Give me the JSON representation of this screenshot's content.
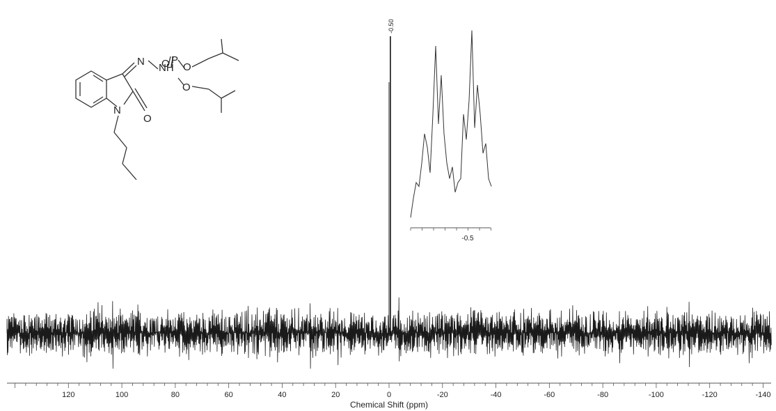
{
  "chart_data": {
    "type": "line",
    "xlabel": "Chemical Shift (ppm)",
    "xlim": [
      143,
      -143
    ],
    "x_reversed": true,
    "ylabel": "",
    "grid": false,
    "x_ticks": [
      120,
      100,
      80,
      60,
      40,
      20,
      0,
      -20,
      -40,
      -60,
      -80,
      -100,
      -120,
      -140
    ],
    "x_tick_labels": [
      "120",
      "100",
      "80",
      "60",
      "40",
      "20",
      "0",
      "-20",
      "-40",
      "-60",
      "-80",
      "-100",
      "-120",
      "-140"
    ],
    "peaks": [
      {
        "shift": -0.5,
        "label": "-0.50",
        "relative_height": 1.0
      }
    ],
    "baseline": "noise",
    "inset": {
      "type": "line",
      "description_of_content": "expanded multiplet around the main peak",
      "x_ticks": [
        -0.5
      ],
      "x_tick_labels": [
        "-0.5"
      ],
      "profile": [
        0.02,
        0.12,
        0.2,
        0.18,
        0.3,
        0.45,
        0.38,
        0.25,
        0.55,
        0.9,
        0.5,
        0.75,
        0.45,
        0.3,
        0.22,
        0.28,
        0.15,
        0.2,
        0.22,
        0.55,
        0.42,
        0.62,
        0.98,
        0.48,
        0.7,
        0.55,
        0.35,
        0.4,
        0.22,
        0.18
      ]
    }
  },
  "structure": {
    "atom_labels": {
      "n_imine": "N",
      "n_bridge": "N",
      "nh": "NH",
      "p": "P",
      "o_double": "O",
      "o_ester1": "O",
      "o_ester2": "O",
      "n_ring": "N",
      "o_carbonyl": "O"
    }
  }
}
